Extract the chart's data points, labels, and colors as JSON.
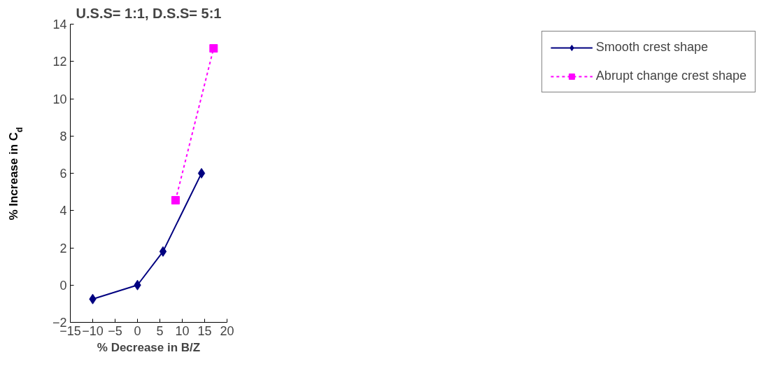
{
  "chart_data": {
    "type": "line",
    "title": "U.S.S= 1:1, D.S.S= 5:1",
    "xlabel": "% Decrease in B/Z",
    "ylabel": "% Increase in C$_{d}$",
    "xlim": [
      -15,
      20
    ],
    "ylim": [
      -2,
      14
    ],
    "xticks": [
      -15,
      -10,
      -5,
      0,
      5,
      10,
      15,
      20
    ],
    "yticks": [
      -2,
      0,
      2,
      4,
      6,
      8,
      10,
      12,
      14
    ],
    "grid": false,
    "legend": "right",
    "series": [
      {
        "name": "Smooth crest shape",
        "color": "#000080",
        "marker": "diamond",
        "line_style": "solid",
        "x": [
          -10,
          0,
          5.7,
          14.3
        ],
        "values": [
          -0.75,
          0,
          1.8,
          6
        ]
      },
      {
        "name": "Abrupt change crest shape",
        "color": "#ff00ff",
        "marker": "square",
        "line_style": "dotted",
        "x": [
          8.5,
          17
        ],
        "values": [
          4.55,
          12.7
        ]
      }
    ]
  }
}
